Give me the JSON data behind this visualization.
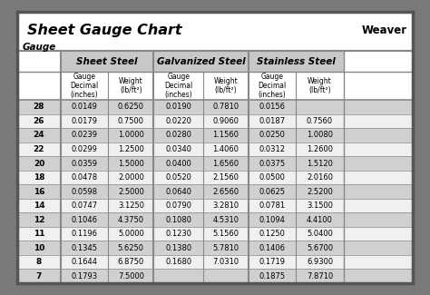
{
  "title": "Sheet Gauge Chart",
  "bg_outer": "#7a7a7a",
  "bg_white": "#ffffff",
  "bg_title": "#ffffff",
  "bg_header_dark": "#c8c8c8",
  "bg_row_dark": "#d0d0d0",
  "bg_row_light": "#f0f0f0",
  "divider": "#888888",
  "gauges": [
    28,
    26,
    24,
    22,
    20,
    18,
    16,
    14,
    12,
    11,
    10,
    8,
    7
  ],
  "sheet_steel_dec": [
    "0.0149",
    "0.0179",
    "0.0239",
    "0.0299",
    "0.0359",
    "0.0478",
    "0.0598",
    "0.0747",
    "0.1046",
    "0.1196",
    "0.1345",
    "0.1644",
    "0.1793"
  ],
  "sheet_steel_wt": [
    "0.6250",
    "0.7500",
    "1.0000",
    "1.2500",
    "1.5000",
    "2.0000",
    "2.5000",
    "3.1250",
    "4.3750",
    "5.0000",
    "5.6250",
    "6.8750",
    "7.5000"
  ],
  "galv_dec": [
    "0.0190",
    "0.0220",
    "0.0280",
    "0.0340",
    "0.0400",
    "0.0520",
    "0.0640",
    "0.0790",
    "0.1080",
    "0.1230",
    "0.1380",
    "0.1680",
    ""
  ],
  "galv_wt": [
    "0.7810",
    "0.9060",
    "1.1560",
    "1.4060",
    "1.6560",
    "2.1560",
    "2.6560",
    "3.2810",
    "4.5310",
    "5.1560",
    "5.7810",
    "7.0310",
    ""
  ],
  "ss_dec": [
    "0.0156",
    "0.0187",
    "0.0250",
    "0.0312",
    "0.0375",
    "0.0500",
    "0.0625",
    "0.0781",
    "0.1094",
    "0.1250",
    "0.1406",
    "0.1719",
    "0.1875"
  ],
  "ss_wt": [
    "",
    "0.7560",
    "1.0080",
    "1.2600",
    "1.5120",
    "2.0160",
    "2.5200",
    "3.1500",
    "4.4100",
    "5.0400",
    "5.6700",
    "6.9300",
    "7.8710"
  ],
  "section_headers": [
    "Sheet Steel",
    "Galvanized Steel",
    "Stainless Steel"
  ],
  "figsize": [
    4.74,
    3.25
  ],
  "dpi": 100
}
